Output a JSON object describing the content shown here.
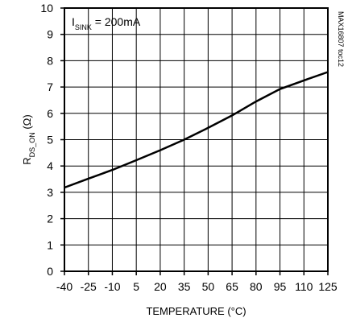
{
  "chart_data": {
    "type": "line",
    "title": "",
    "xlabel": "TEMPERATURE (°C)",
    "ylabel": {
      "main": "R",
      "sub": "DS_ON",
      "unit": " (Ω)"
    },
    "xlim": [
      -40,
      125
    ],
    "ylim": [
      0,
      10
    ],
    "x_ticks": [
      "-40",
      "-25",
      "-10",
      "5",
      "20",
      "35",
      "50",
      "65",
      "80",
      "95",
      "110",
      "125"
    ],
    "y_ticks": [
      "0",
      "1",
      "2",
      "3",
      "4",
      "5",
      "6",
      "7",
      "8",
      "9",
      "10"
    ],
    "grid": true,
    "annotation": {
      "main": "I",
      "sub": "SINK",
      "rest": " = 200mA"
    },
    "corner_tag": "MAX16807 toc12",
    "series": [
      {
        "x": [
          -40,
          -25,
          -10,
          5,
          20,
          35,
          50,
          65,
          80,
          95,
          110,
          125
        ],
        "y": [
          3.18,
          3.52,
          3.85,
          4.22,
          4.6,
          5.0,
          5.45,
          5.92,
          6.45,
          6.92,
          7.25,
          7.57
        ]
      }
    ]
  }
}
